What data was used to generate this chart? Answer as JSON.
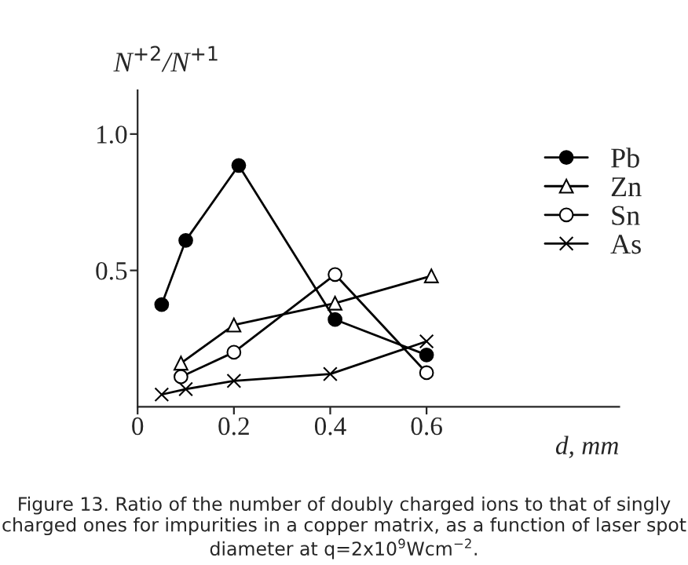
{
  "chart_data": {
    "type": "line",
    "ylabel": "N$^{+2}$/N$^{+1}$",
    "xlabel": "d, mm",
    "annotations": [
      "Figure 13. Ratio of the number of doubly charged ions to that of singly charged ones for impurities in a copper matrix, as a function of laser spot diameter at q=2x10$^{9}$Wcm$^{−2}$."
    ],
    "series": [
      {
        "name": "Pb",
        "color": "#000000",
        "marker": "circle",
        "x": [
          0.05,
          0.1,
          0.21,
          0.41,
          0.6
        ],
        "values": [
          0.375,
          0.61,
          0.885,
          0.32,
          0.19
        ]
      },
      {
        "name": "Zn",
        "color": "#000000",
        "marker": "triangle",
        "x": [
          0.09,
          0.2,
          0.41,
          0.61
        ],
        "values": [
          0.16,
          0.3,
          0.38,
          0.48
        ]
      },
      {
        "name": "Sn",
        "color": "#000000",
        "marker": "circle",
        "x": [
          0.09,
          0.2,
          0.41,
          0.6
        ],
        "values": [
          0.11,
          0.2,
          0.485,
          0.125
        ]
      },
      {
        "name": "As",
        "color": "#000000",
        "marker": "cross",
        "x": [
          0.05,
          0.1,
          0.2,
          0.4,
          0.6
        ],
        "values": [
          0.045,
          0.065,
          0.095,
          0.12,
          0.24
        ]
      }
    ],
    "xlim": [
      0,
      1.0
    ],
    "ylim": [
      0,
      1.16
    ],
    "xticks": [
      0,
      0.2,
      0.4,
      0.6
    ],
    "yticks": [
      0.5,
      {
        "value": 1,
        "label": "1.0"
      }
    ],
    "grid": false,
    "legend": "top right",
    "line_style": "solid"
  }
}
